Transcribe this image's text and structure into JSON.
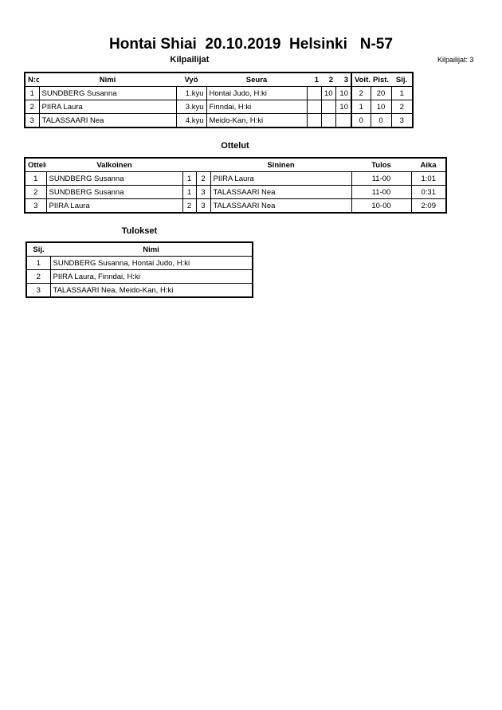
{
  "title": "Hontai Shiai  20.10.2019  Helsinki   N-57",
  "competitors_count_label": "Kilpailijat: 3",
  "competitors": {
    "heading": "Kilpailijat",
    "columns": [
      "N:o",
      "Nimi",
      "Vyö",
      "Seura",
      "1",
      "2",
      "3",
      "Voit.",
      "Pist.",
      "Sij."
    ],
    "rows": [
      [
        "1",
        "SUNDBERG Susanna",
        "1.kyu",
        "Hontai Judo, H:ki",
        "",
        "10",
        "10",
        "2",
        "20",
        "1"
      ],
      [
        "2",
        "PIIRA Laura",
        "3.kyu",
        "Finndai, H:ki",
        "",
        "",
        "10",
        "1",
        "10",
        "2"
      ],
      [
        "3",
        "TALASSAARI Nea",
        "4.kyu",
        "Meido-Kan, H:ki",
        "",
        "",
        "",
        "0",
        "0",
        "3"
      ]
    ]
  },
  "matches": {
    "heading": "Ottelut",
    "columns": [
      "Ottelu",
      "Valkoinen",
      "",
      "",
      "Sininen",
      "Tulos",
      "Aika"
    ],
    "rows": [
      [
        "1",
        "SUNDBERG Susanna",
        "1",
        "2",
        "PIIRA Laura",
        "11-00",
        "1:01"
      ],
      [
        "2",
        "SUNDBERG Susanna",
        "1",
        "3",
        "TALASSAARI Nea",
        "11-00",
        "0:31"
      ],
      [
        "3",
        "PIIRA Laura",
        "2",
        "3",
        "TALASSAARI Nea",
        "10-00",
        "2:09"
      ]
    ]
  },
  "results": {
    "heading": "Tulokset",
    "columns": [
      "Sij.",
      "Nimi"
    ],
    "rows": [
      [
        "1",
        "SUNDBERG Susanna, Hontai Judo, H:ki"
      ],
      [
        "2",
        "PIIRA Laura, Finndai, H:ki"
      ],
      [
        "3",
        "TALASSAARI Nea, Meido-Kan, H:ki"
      ]
    ]
  }
}
